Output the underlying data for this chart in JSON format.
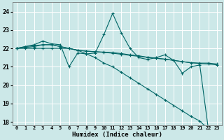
{
  "xlabel": "Humidex (Indice chaleur)",
  "background_color": "#cce8e8",
  "grid_color": "#ffffff",
  "line_color": "#006666",
  "xlim_min": -0.5,
  "xlim_max": 23.5,
  "ylim_min": 17.8,
  "ylim_max": 24.5,
  "yticks": [
    18,
    19,
    20,
    21,
    22,
    23,
    24
  ],
  "xtick_labels": [
    "0",
    "1",
    "2",
    "3",
    "4",
    "5",
    "6",
    "7",
    "8",
    "9",
    "10",
    "11",
    "12",
    "13",
    "14",
    "15",
    "16",
    "17",
    "18",
    "19",
    "20",
    "21",
    "22",
    "23"
  ],
  "series1_x": [
    0,
    1,
    2,
    3,
    4,
    5,
    6,
    7,
    8,
    9,
    10,
    11,
    12,
    13,
    14,
    15,
    16,
    17,
    18,
    19,
    20,
    21,
    22
  ],
  "series1_y": [
    22.0,
    22.1,
    22.2,
    22.4,
    22.25,
    22.2,
    21.0,
    21.75,
    21.7,
    21.75,
    22.75,
    23.9,
    22.85,
    22.0,
    21.5,
    21.4,
    21.5,
    21.65,
    21.35,
    20.65,
    21.0,
    21.1,
    17.55
  ],
  "series2_x": [
    0,
    1,
    2,
    3,
    4,
    5,
    6,
    7,
    8,
    9,
    10,
    11,
    12,
    13,
    14,
    15,
    16,
    17,
    18,
    19,
    20,
    21,
    22,
    23
  ],
  "series2_y": [
    22.0,
    22.1,
    22.15,
    22.2,
    22.2,
    22.1,
    22.0,
    21.9,
    21.85,
    21.82,
    21.8,
    21.77,
    21.72,
    21.65,
    21.6,
    21.52,
    21.47,
    21.42,
    21.35,
    21.28,
    21.22,
    21.18,
    21.15,
    21.1
  ],
  "series3_x": [
    0,
    1,
    2,
    3,
    4,
    5,
    6,
    7,
    8,
    9,
    10,
    11,
    12,
    13,
    14,
    15,
    16,
    17,
    18,
    19,
    20,
    21,
    22,
    23
  ],
  "series3_y": [
    22.0,
    22.05,
    22.1,
    22.2,
    22.2,
    22.1,
    22.0,
    21.9,
    21.85,
    21.82,
    21.78,
    21.74,
    21.68,
    21.62,
    21.57,
    21.51,
    21.46,
    21.41,
    21.35,
    21.28,
    21.22,
    21.2,
    21.2,
    21.15
  ],
  "series4_x": [
    0,
    1,
    2,
    3,
    4,
    5,
    6,
    7,
    8,
    9,
    10,
    11,
    12,
    13,
    14,
    15,
    16,
    17,
    18,
    19,
    20,
    21,
    22
  ],
  "series4_y": [
    22.0,
    22.0,
    22.0,
    22.0,
    22.0,
    22.0,
    22.0,
    21.9,
    21.7,
    21.5,
    21.2,
    21.0,
    20.7,
    20.4,
    20.1,
    19.8,
    19.5,
    19.2,
    18.9,
    18.6,
    18.3,
    18.05,
    17.6
  ]
}
